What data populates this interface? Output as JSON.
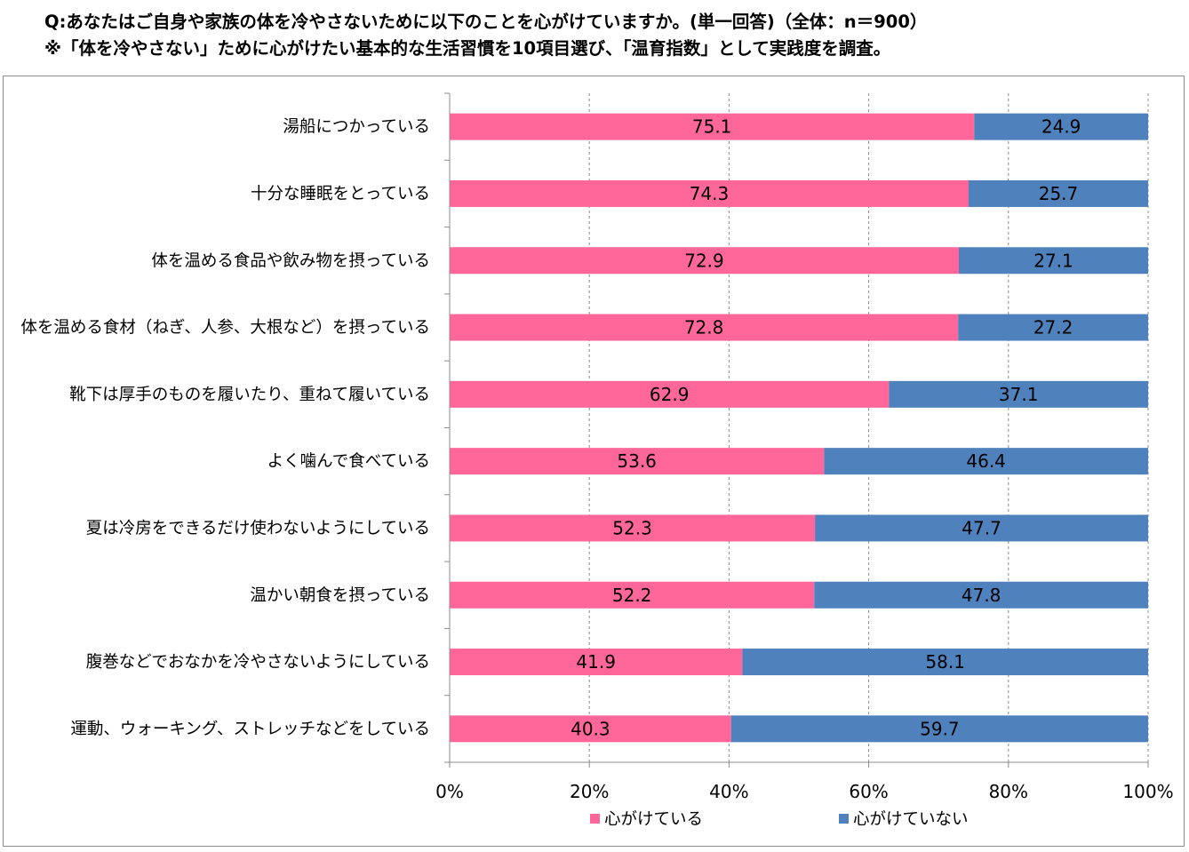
{
  "header": {
    "line1": "Q:あなたはご自身や家族の体を冷やさないために以下のことを心がけていますか。(単一回答)（全体：n＝900）",
    "line2": "※「体を冷やさない」ために心がけたい基本的な生活習慣を10項目選び、「温育指数」として実践度を調査。"
  },
  "chart_data": {
    "type": "bar",
    "orientation": "horizontal",
    "stacked": "percent",
    "categories": [
      "湯船につかっている",
      "十分な睡眠をとっている",
      "体を温める食品や飲み物を摂っている",
      "体を温める食材（ねぎ、人参、大根など）を摂っている",
      "靴下は厚手のものを履いたり、重ねて履いている",
      "よく噛んで食べている",
      "夏は冷房をできるだけ使わないようにしている",
      "温かい朝食を摂っている",
      "腹巻などでおなかを冷やさないようにしている",
      "運動、ウォーキング、ストレッチなどをしている"
    ],
    "series": [
      {
        "name": "心がけている",
        "color": "#ff6699",
        "values": [
          75.1,
          74.3,
          72.9,
          72.8,
          62.9,
          53.6,
          52.3,
          52.2,
          41.9,
          40.3
        ]
      },
      {
        "name": "心がけていない",
        "color": "#4f81bd",
        "values": [
          24.9,
          25.7,
          27.1,
          27.2,
          37.1,
          46.4,
          47.7,
          47.8,
          58.1,
          59.7
        ]
      }
    ],
    "xlim": [
      0,
      100
    ],
    "xticks": [
      "0%",
      "20%",
      "40%",
      "60%",
      "80%",
      "100%"
    ],
    "grid": "vertical-dashed",
    "legend_position": "bottom"
  }
}
